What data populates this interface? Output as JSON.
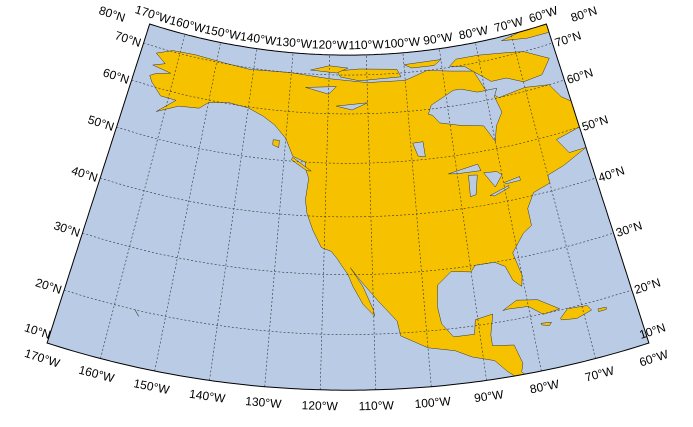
{
  "map": {
    "projection": "conic",
    "lon_range": [
      -170,
      -60
    ],
    "lat_range": [
      10,
      80
    ],
    "lat_labels": [
      "10°N",
      "20°N",
      "30°N",
      "40°N",
      "50°N",
      "60°N",
      "70°N",
      "80°N"
    ],
    "lon_labels": [
      "170°W",
      "160°W",
      "150°W",
      "140°W",
      "130°W",
      "120°W",
      "110°W",
      "100°W",
      "90°W",
      "80°W",
      "70°W",
      "60°W"
    ],
    "grid": true,
    "colors": {
      "ocean": "#bacbe6",
      "land_base": "#f6c200",
      "orange": "#f0a000",
      "light_yellow": "#f7ef5a",
      "pale_green": "#c8ec90",
      "teal": "#2fb39c",
      "dark_teal": "#1a6f7a",
      "no_data": "#ffffff"
    }
  }
}
